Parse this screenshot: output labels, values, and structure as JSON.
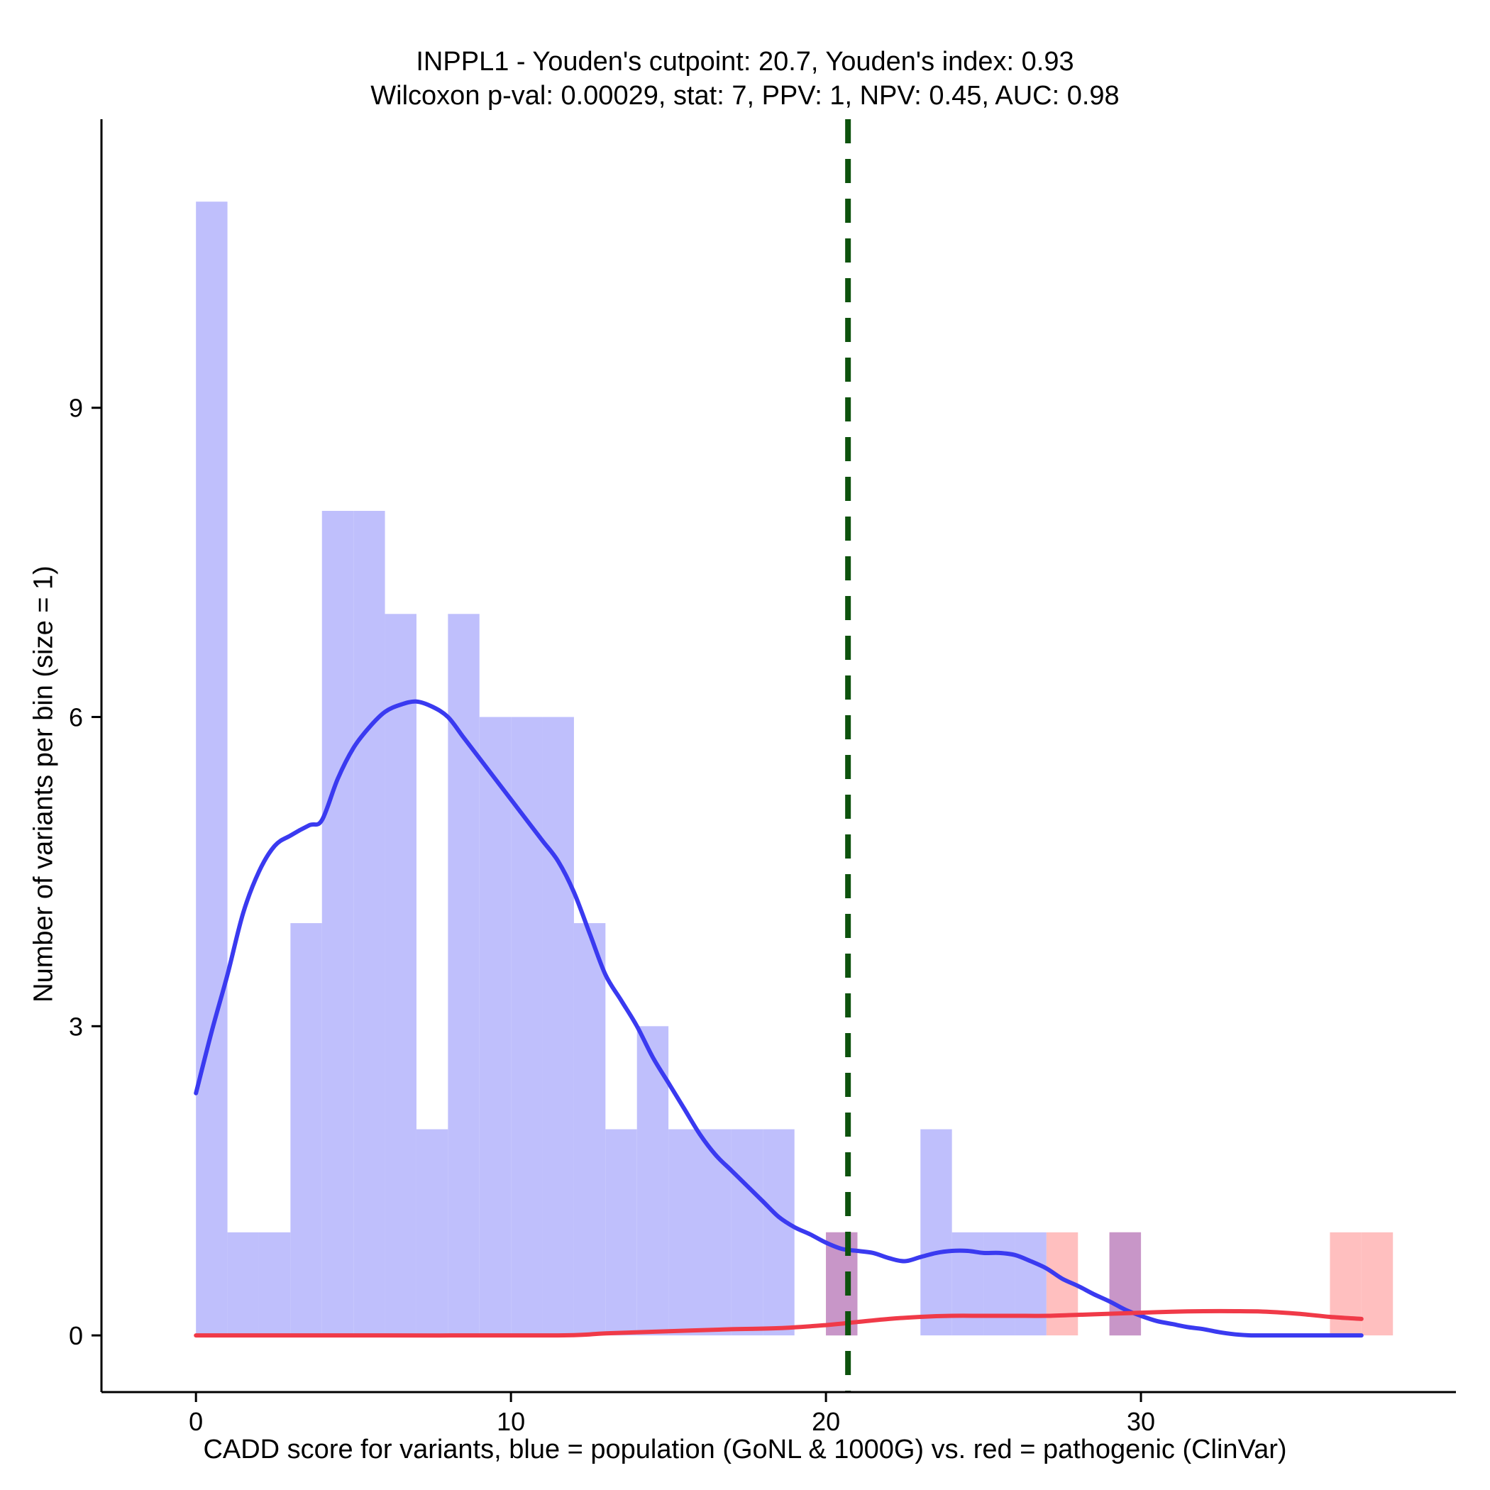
{
  "chart_data": {
    "type": "bar",
    "title": "INPPL1 - Youden's cutpoint: 20.7, Youden's index: 0.93",
    "subtitle": "Wilcoxon p-val: 0.00029, stat: 7, PPV: 1, NPV: 0.45, AUC: 0.98",
    "xlabel": "CADD score for variants, blue = population (GoNL & 1000G) vs. red = pathogenic (ClinVar)",
    "ylabel": "Number of variants per bin (size = 1)",
    "xlim": [
      -3,
      40
    ],
    "ylim": [
      -0.55,
      11.8
    ],
    "x_ticks": [
      0,
      10,
      20,
      30
    ],
    "y_ticks": [
      0,
      3,
      6,
      9
    ],
    "grid": false,
    "cutpoint": 20.7,
    "colors": {
      "population_fill": "#bfbffc",
      "pathogenic_fill": "#ffbfbf",
      "overlap_fill": "#c896c8",
      "population_line": "#3a3af0",
      "pathogenic_line": "#f03a48",
      "cutpoint_line": "#0d520d"
    },
    "series": [
      {
        "name": "population (GoNL & 1000G)",
        "bins": [
          [
            0,
            11
          ],
          [
            1,
            1
          ],
          [
            2,
            1
          ],
          [
            3,
            4
          ],
          [
            4,
            8
          ],
          [
            5,
            8
          ],
          [
            6,
            7
          ],
          [
            7,
            2
          ],
          [
            8,
            7
          ],
          [
            9,
            6
          ],
          [
            10,
            6
          ],
          [
            11,
            6
          ],
          [
            12,
            4
          ],
          [
            13,
            2
          ],
          [
            14,
            3
          ],
          [
            15,
            2
          ],
          [
            16,
            2
          ],
          [
            17,
            2
          ],
          [
            18,
            2
          ],
          [
            20,
            1
          ],
          [
            23,
            2
          ],
          [
            24,
            1
          ],
          [
            25,
            1
          ],
          [
            26,
            1
          ],
          [
            29,
            1
          ]
        ],
        "density": [
          [
            0,
            2.35
          ],
          [
            0.5,
            2.95
          ],
          [
            1,
            3.5
          ],
          [
            1.5,
            4.1
          ],
          [
            2,
            4.5
          ],
          [
            2.5,
            4.75
          ],
          [
            3,
            4.85
          ],
          [
            3.6,
            4.95
          ],
          [
            4,
            5.0
          ],
          [
            4.5,
            5.4
          ],
          [
            5,
            5.7
          ],
          [
            5.5,
            5.9
          ],
          [
            6,
            6.05
          ],
          [
            6.5,
            6.12
          ],
          [
            7,
            6.15
          ],
          [
            7.5,
            6.1
          ],
          [
            8,
            6.0
          ],
          [
            8.5,
            5.8
          ],
          [
            9,
            5.6
          ],
          [
            9.5,
            5.4
          ],
          [
            10,
            5.2
          ],
          [
            10.5,
            5.0
          ],
          [
            11,
            4.8
          ],
          [
            11.5,
            4.6
          ],
          [
            12,
            4.3
          ],
          [
            12.5,
            3.9
          ],
          [
            13,
            3.5
          ],
          [
            13.5,
            3.25
          ],
          [
            14,
            3.0
          ],
          [
            14.5,
            2.7
          ],
          [
            15,
            2.45
          ],
          [
            15.5,
            2.2
          ],
          [
            16,
            1.95
          ],
          [
            16.5,
            1.75
          ],
          [
            17,
            1.6
          ],
          [
            17.5,
            1.45
          ],
          [
            18,
            1.3
          ],
          [
            18.5,
            1.15
          ],
          [
            19,
            1.05
          ],
          [
            19.5,
            0.98
          ],
          [
            20,
            0.9
          ],
          [
            20.5,
            0.84
          ],
          [
            21,
            0.82
          ],
          [
            21.5,
            0.8
          ],
          [
            22,
            0.75
          ],
          [
            22.5,
            0.72
          ],
          [
            23,
            0.76
          ],
          [
            23.5,
            0.8
          ],
          [
            24,
            0.82
          ],
          [
            24.5,
            0.82
          ],
          [
            25,
            0.8
          ],
          [
            25.5,
            0.8
          ],
          [
            26,
            0.78
          ],
          [
            26.5,
            0.72
          ],
          [
            27,
            0.65
          ],
          [
            27.5,
            0.55
          ],
          [
            28,
            0.48
          ],
          [
            28.5,
            0.4
          ],
          [
            29,
            0.33
          ],
          [
            29.5,
            0.25
          ],
          [
            30,
            0.19
          ],
          [
            30.5,
            0.14
          ],
          [
            31,
            0.11
          ],
          [
            31.5,
            0.08
          ],
          [
            32,
            0.06
          ],
          [
            32.5,
            0.03
          ],
          [
            33,
            0.01
          ],
          [
            33.5,
            0.0
          ],
          [
            34,
            0.0
          ],
          [
            35,
            0.0
          ],
          [
            36,
            0.0
          ],
          [
            37,
            0.0
          ]
        ]
      },
      {
        "name": "pathogenic (ClinVar)",
        "bins": [
          [
            20,
            1
          ],
          [
            27,
            1
          ],
          [
            29,
            1
          ],
          [
            36,
            1
          ],
          [
            37,
            1
          ]
        ],
        "density": [
          [
            0,
            0.0
          ],
          [
            6,
            0.0
          ],
          [
            11.5,
            0.0
          ],
          [
            13,
            0.02
          ],
          [
            15,
            0.04
          ],
          [
            17,
            0.06
          ],
          [
            18.5,
            0.07
          ],
          [
            20,
            0.1
          ],
          [
            21,
            0.13
          ],
          [
            22,
            0.16
          ],
          [
            23,
            0.18
          ],
          [
            24,
            0.19
          ],
          [
            25,
            0.19
          ],
          [
            26,
            0.19
          ],
          [
            27,
            0.19
          ],
          [
            28,
            0.2
          ],
          [
            29,
            0.21
          ],
          [
            30,
            0.22
          ],
          [
            31,
            0.23
          ],
          [
            32,
            0.235
          ],
          [
            33,
            0.235
          ],
          [
            34,
            0.23
          ],
          [
            35,
            0.21
          ],
          [
            36,
            0.18
          ],
          [
            37,
            0.16
          ]
        ]
      }
    ]
  }
}
